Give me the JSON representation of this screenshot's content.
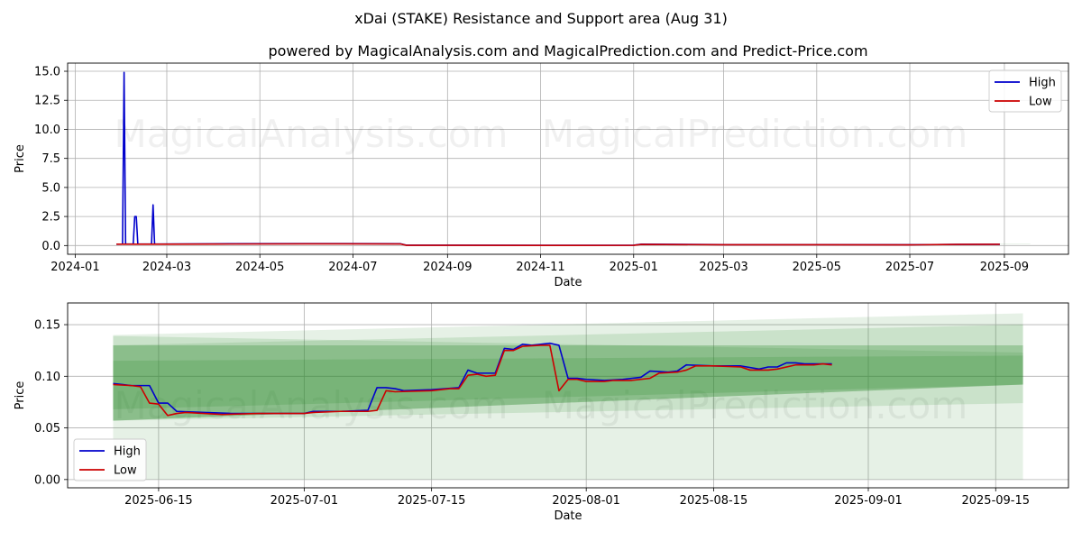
{
  "chart_data": [
    {
      "type": "line",
      "title": "xDai (STAKE) Resistance and Support area (Aug 31)",
      "subtitle": "powered by MagicalAnalysis.com and MagicalPrediction.com and Predict-Price.com",
      "xlabel": "Date",
      "ylabel": "Price",
      "xlim": [
        "2023-12-27",
        "2025-10-13"
      ],
      "ylim": [
        -0.75,
        15.7
      ],
      "yticks": [
        0.0,
        2.5,
        5.0,
        7.5,
        10.0,
        12.5,
        15.0
      ],
      "ytick_labels": [
        "0.0",
        "2.5",
        "5.0",
        "7.5",
        "10.0",
        "12.5",
        "15.0"
      ],
      "xticks": [
        "2024-01-01",
        "2024-03-01",
        "2024-05-01",
        "2024-07-01",
        "2024-09-01",
        "2024-11-01",
        "2025-01-01",
        "2025-03-01",
        "2025-05-01",
        "2025-07-01",
        "2025-09-01"
      ],
      "xtick_labels": [
        "2024-01",
        "2024-03",
        "2024-05",
        "2024-07",
        "2024-09",
        "2024-11",
        "2025-01",
        "2025-03",
        "2025-05",
        "2025-07",
        "2025-09"
      ],
      "grid": true,
      "legend_position": "top-right",
      "series": [
        {
          "name": "High",
          "color": "#0000cc",
          "points": [
            [
              "2024-01-28",
              0.12
            ],
            [
              "2024-02-01",
              0.13
            ],
            [
              "2024-02-02",
              14.9
            ],
            [
              "2024-02-03",
              0.13
            ],
            [
              "2024-02-08",
              0.13
            ],
            [
              "2024-02-09",
              2.5
            ],
            [
              "2024-02-10",
              2.5
            ],
            [
              "2024-02-11",
              0.13
            ],
            [
              "2024-02-20",
              0.13
            ],
            [
              "2024-02-21",
              3.5
            ],
            [
              "2024-02-22",
              0.13
            ],
            [
              "2024-04-01",
              0.15
            ],
            [
              "2024-06-01",
              0.17
            ],
            [
              "2024-08-01",
              0.16
            ],
            [
              "2024-08-05",
              0.03
            ],
            [
              "2024-09-01",
              0.03
            ],
            [
              "2024-11-01",
              0.02
            ],
            [
              "2025-01-01",
              0.03
            ],
            [
              "2025-01-06",
              0.12
            ],
            [
              "2025-03-01",
              0.08
            ],
            [
              "2025-05-01",
              0.08
            ],
            [
              "2025-07-01",
              0.07
            ],
            [
              "2025-08-01",
              0.1
            ],
            [
              "2025-08-29",
              0.112
            ]
          ]
        },
        {
          "name": "Low",
          "color": "#cc0000",
          "points": [
            [
              "2024-01-28",
              0.12
            ],
            [
              "2024-03-01",
              0.12
            ],
            [
              "2024-04-01",
              0.13
            ],
            [
              "2024-06-01",
              0.15
            ],
            [
              "2024-08-01",
              0.14
            ],
            [
              "2024-08-05",
              0.02
            ],
            [
              "2024-09-01",
              0.02
            ],
            [
              "2024-11-01",
              0.01
            ],
            [
              "2025-01-01",
              0.02
            ],
            [
              "2025-01-06",
              0.1
            ],
            [
              "2025-03-01",
              0.07
            ],
            [
              "2025-05-01",
              0.07
            ],
            [
              "2025-07-01",
              0.06
            ],
            [
              "2025-08-01",
              0.096
            ],
            [
              "2025-08-29",
              0.11
            ]
          ]
        }
      ],
      "bands": [
        {
          "start": "2025-06-10",
          "end": "2025-09-18",
          "low_start": 0.09,
          "low_end": 0.1,
          "high_start": 0.13,
          "high_end": 0.13,
          "color": "#2e8b2e",
          "opacity": 0.25
        }
      ]
    },
    {
      "type": "line",
      "xlabel": "Date",
      "ylabel": "Price",
      "xlim": [
        "2025-06-05",
        "2025-09-23"
      ],
      "ylim": [
        -0.008,
        0.171
      ],
      "yticks": [
        0.0,
        0.05,
        0.1,
        0.15
      ],
      "ytick_labels": [
        "0.00",
        "0.05",
        "0.10",
        "0.15"
      ],
      "xticks": [
        "2025-06-15",
        "2025-07-01",
        "2025-07-15",
        "2025-08-01",
        "2025-08-15",
        "2025-09-01",
        "2025-09-15"
      ],
      "xtick_labels": [
        "2025-06-15",
        "2025-07-01",
        "2025-07-15",
        "2025-08-01",
        "2025-08-15",
        "2025-09-01",
        "2025-09-15"
      ],
      "grid": true,
      "legend_position": "bottom-left",
      "bands": [
        {
          "start": "2025-06-10",
          "end": "2025-09-18",
          "low_start": 0.0,
          "low_end": 0.0,
          "high_start": 0.14,
          "high_end": 0.161,
          "color": "#2e8b2e",
          "opacity": 0.12
        },
        {
          "start": "2025-06-10",
          "end": "2025-09-18",
          "low_start": 0.057,
          "low_end": 0.074,
          "high_start": 0.139,
          "high_end": 0.123,
          "color": "#2e8b2e",
          "opacity": 0.15
        },
        {
          "start": "2025-06-10",
          "end": "2025-09-18",
          "low_start": 0.057,
          "low_end": 0.092,
          "high_start": 0.13,
          "high_end": 0.15,
          "color": "#2e8b2e",
          "opacity": 0.15
        },
        {
          "start": "2025-06-10",
          "end": "2025-09-18",
          "low_start": 0.057,
          "low_end": 0.092,
          "high_start": 0.13,
          "high_end": 0.13,
          "color": "#2e8b2e",
          "opacity": 0.3
        },
        {
          "start": "2025-06-10",
          "end": "2025-09-18",
          "low_start": 0.068,
          "low_end": 0.092,
          "high_start": 0.115,
          "high_end": 0.12,
          "color": "#2e8b2e",
          "opacity": 0.2
        }
      ],
      "series": [
        {
          "name": "High",
          "color": "#0000cc",
          "points": [
            [
              "2025-06-10",
              0.093
            ],
            [
              "2025-06-11",
              0.092
            ],
            [
              "2025-06-12",
              0.091
            ],
            [
              "2025-06-13",
              0.091
            ],
            [
              "2025-06-14",
              0.091
            ],
            [
              "2025-06-15",
              0.074
            ],
            [
              "2025-06-16",
              0.074
            ],
            [
              "2025-06-17",
              0.066
            ],
            [
              "2025-06-20",
              0.065
            ],
            [
              "2025-06-23",
              0.064
            ],
            [
              "2025-06-27",
              0.064
            ],
            [
              "2025-07-01",
              0.064
            ],
            [
              "2025-07-02",
              0.066
            ],
            [
              "2025-07-05",
              0.066
            ],
            [
              "2025-07-08",
              0.067
            ],
            [
              "2025-07-09",
              0.089
            ],
            [
              "2025-07-10",
              0.089
            ],
            [
              "2025-07-11",
              0.088
            ],
            [
              "2025-07-12",
              0.086
            ],
            [
              "2025-07-15",
              0.087
            ],
            [
              "2025-07-18",
              0.089
            ],
            [
              "2025-07-19",
              0.106
            ],
            [
              "2025-07-20",
              0.103
            ],
            [
              "2025-07-22",
              0.103
            ],
            [
              "2025-07-23",
              0.127
            ],
            [
              "2025-07-24",
              0.126
            ],
            [
              "2025-07-25",
              0.131
            ],
            [
              "2025-07-26",
              0.13
            ],
            [
              "2025-07-27",
              0.131
            ],
            [
              "2025-07-28",
              0.132
            ],
            [
              "2025-07-29",
              0.13
            ],
            [
              "2025-07-30",
              0.098
            ],
            [
              "2025-07-31",
              0.098
            ],
            [
              "2025-08-01",
              0.097
            ],
            [
              "2025-08-03",
              0.096
            ],
            [
              "2025-08-05",
              0.097
            ],
            [
              "2025-08-07",
              0.099
            ],
            [
              "2025-08-08",
              0.105
            ],
            [
              "2025-08-10",
              0.104
            ],
            [
              "2025-08-11",
              0.105
            ],
            [
              "2025-08-12",
              0.111
            ],
            [
              "2025-08-15",
              0.11
            ],
            [
              "2025-08-18",
              0.11
            ],
            [
              "2025-08-20",
              0.107
            ],
            [
              "2025-08-21",
              0.109
            ],
            [
              "2025-08-22",
              0.109
            ],
            [
              "2025-08-23",
              0.113
            ],
            [
              "2025-08-24",
              0.113
            ],
            [
              "2025-08-25",
              0.112
            ],
            [
              "2025-08-28",
              0.112
            ]
          ]
        },
        {
          "name": "Low",
          "color": "#cc0000",
          "points": [
            [
              "2025-06-10",
              0.092
            ],
            [
              "2025-06-12",
              0.091
            ],
            [
              "2025-06-13",
              0.09
            ],
            [
              "2025-06-14",
              0.074
            ],
            [
              "2025-06-15",
              0.073
            ],
            [
              "2025-06-16",
              0.062
            ],
            [
              "2025-06-17",
              0.064
            ],
            [
              "2025-06-18",
              0.065
            ],
            [
              "2025-06-20",
              0.064
            ],
            [
              "2025-06-22",
              0.063
            ],
            [
              "2025-06-26",
              0.064
            ],
            [
              "2025-07-01",
              0.064
            ],
            [
              "2025-07-02",
              0.065
            ],
            [
              "2025-07-05",
              0.066
            ],
            [
              "2025-07-08",
              0.066
            ],
            [
              "2025-07-09",
              0.067
            ],
            [
              "2025-07-10",
              0.086
            ],
            [
              "2025-07-11",
              0.085
            ],
            [
              "2025-07-15",
              0.086
            ],
            [
              "2025-07-17",
              0.088
            ],
            [
              "2025-07-18",
              0.088
            ],
            [
              "2025-07-19",
              0.101
            ],
            [
              "2025-07-20",
              0.102
            ],
            [
              "2025-07-21",
              0.1
            ],
            [
              "2025-07-22",
              0.101
            ],
            [
              "2025-07-23",
              0.125
            ],
            [
              "2025-07-24",
              0.125
            ],
            [
              "2025-07-25",
              0.129
            ],
            [
              "2025-07-27",
              0.13
            ],
            [
              "2025-07-28",
              0.13
            ],
            [
              "2025-07-29",
              0.086
            ],
            [
              "2025-07-30",
              0.097
            ],
            [
              "2025-07-31",
              0.097
            ],
            [
              "2025-08-01",
              0.095
            ],
            [
              "2025-08-03",
              0.095
            ],
            [
              "2025-08-04",
              0.096
            ],
            [
              "2025-08-06",
              0.096
            ],
            [
              "2025-08-08",
              0.098
            ],
            [
              "2025-08-09",
              0.103
            ],
            [
              "2025-08-11",
              0.104
            ],
            [
              "2025-08-12",
              0.106
            ],
            [
              "2025-08-13",
              0.11
            ],
            [
              "2025-08-15",
              0.11
            ],
            [
              "2025-08-18",
              0.109
            ],
            [
              "2025-08-19",
              0.106
            ],
            [
              "2025-08-21",
              0.106
            ],
            [
              "2025-08-22",
              0.107
            ],
            [
              "2025-08-24",
              0.111
            ],
            [
              "2025-08-26",
              0.111
            ],
            [
              "2025-08-27",
              0.112
            ],
            [
              "2025-08-28",
              0.111
            ]
          ]
        }
      ]
    }
  ],
  "watermarks": [
    "MagicalAnalysis.com",
    "MagicalPrediction.com"
  ]
}
